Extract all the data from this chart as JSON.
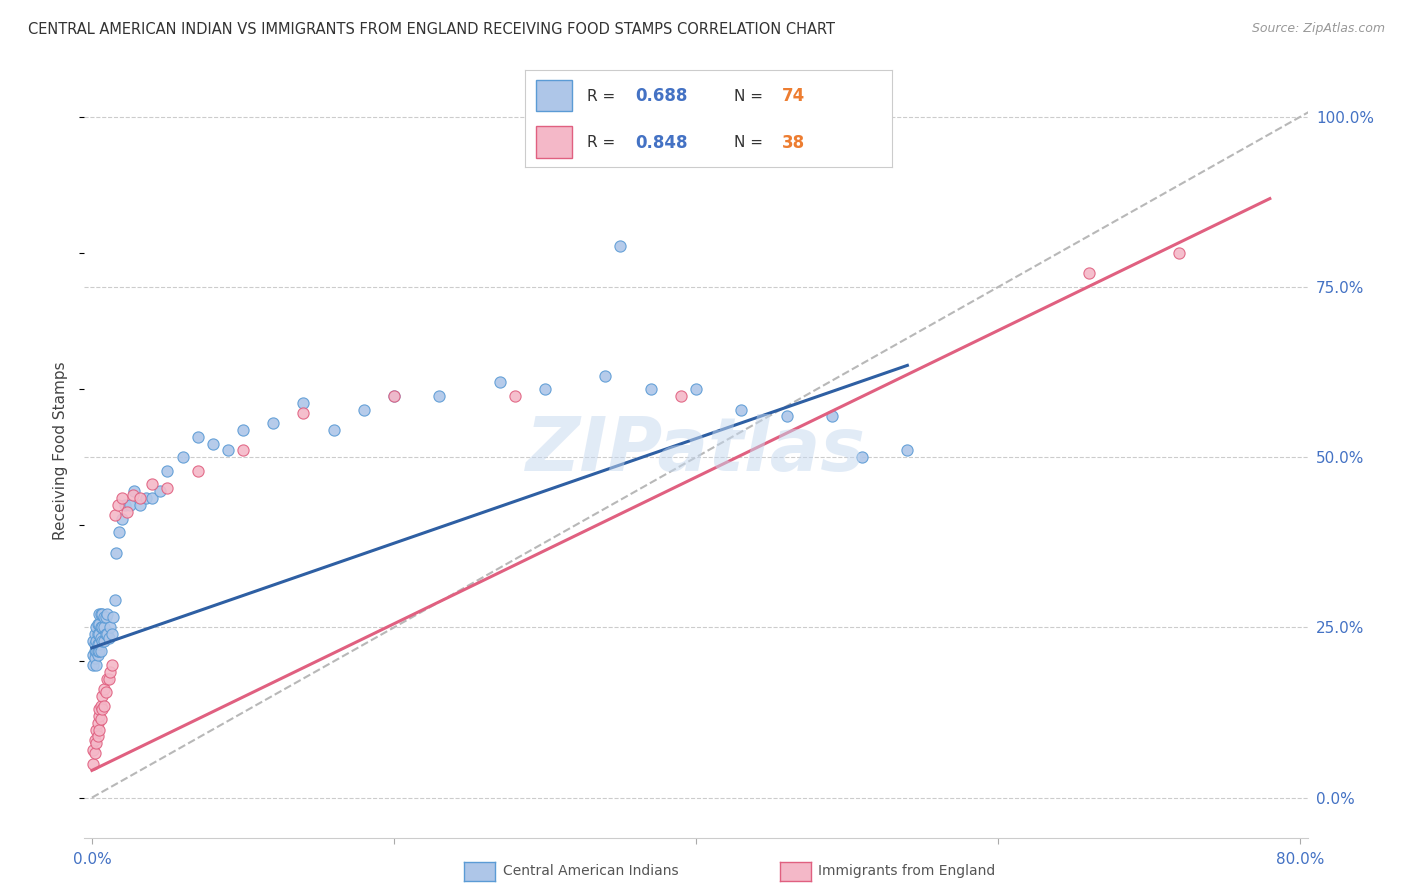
{
  "title": "CENTRAL AMERICAN INDIAN VS IMMIGRANTS FROM ENGLAND RECEIVING FOOD STAMPS CORRELATION CHART",
  "source": "Source: ZipAtlas.com",
  "ylabel": "Receiving Food Stamps",
  "watermark": "ZIPatlas",
  "x_min": -0.005,
  "x_max": 0.805,
  "y_min": -0.06,
  "y_max": 1.08,
  "series1_color": "#aec6e8",
  "series1_edge_color": "#5b9bd5",
  "series1_line_color": "#2e5fa3",
  "series1_label": "Central American Indians",
  "series1_R": "0.688",
  "series1_N": "74",
  "series2_color": "#f4b8c8",
  "series2_edge_color": "#e06080",
  "series2_line_color": "#e06080",
  "series2_label": "Immigrants from England",
  "series2_R": "0.848",
  "series2_N": "38",
  "legend_R_color": "#4472c4",
  "legend_N_color": "#ed7d31",
  "background_color": "#ffffff",
  "grid_color": "#cccccc",
  "blue_line_x": [
    0.0,
    0.54
  ],
  "blue_line_y": [
    0.22,
    0.635
  ],
  "pink_line_x": [
    0.0,
    0.78
  ],
  "pink_line_y": [
    0.04,
    0.88
  ],
  "diag_line_x": [
    0.0,
    0.82
  ],
  "diag_line_y": [
    0.0,
    1.025
  ],
  "s1_x": [
    0.001,
    0.001,
    0.001,
    0.002,
    0.002,
    0.002,
    0.002,
    0.003,
    0.003,
    0.003,
    0.003,
    0.003,
    0.004,
    0.004,
    0.004,
    0.004,
    0.004,
    0.005,
    0.005,
    0.005,
    0.005,
    0.005,
    0.006,
    0.006,
    0.006,
    0.006,
    0.007,
    0.007,
    0.007,
    0.008,
    0.008,
    0.008,
    0.009,
    0.009,
    0.01,
    0.01,
    0.011,
    0.012,
    0.013,
    0.014,
    0.015,
    0.016,
    0.018,
    0.02,
    0.022,
    0.025,
    0.028,
    0.032,
    0.036,
    0.04,
    0.045,
    0.05,
    0.06,
    0.07,
    0.08,
    0.09,
    0.1,
    0.12,
    0.14,
    0.16,
    0.18,
    0.2,
    0.23,
    0.27,
    0.3,
    0.34,
    0.37,
    0.4,
    0.43,
    0.46,
    0.49,
    0.51,
    0.54,
    0.35
  ],
  "s1_y": [
    0.23,
    0.21,
    0.195,
    0.215,
    0.205,
    0.225,
    0.24,
    0.195,
    0.215,
    0.23,
    0.215,
    0.25,
    0.21,
    0.225,
    0.24,
    0.215,
    0.255,
    0.215,
    0.225,
    0.24,
    0.255,
    0.27,
    0.215,
    0.235,
    0.25,
    0.27,
    0.23,
    0.25,
    0.27,
    0.23,
    0.25,
    0.265,
    0.24,
    0.265,
    0.24,
    0.27,
    0.235,
    0.25,
    0.24,
    0.265,
    0.29,
    0.36,
    0.39,
    0.41,
    0.43,
    0.43,
    0.45,
    0.43,
    0.44,
    0.44,
    0.45,
    0.48,
    0.5,
    0.53,
    0.52,
    0.51,
    0.54,
    0.55,
    0.58,
    0.54,
    0.57,
    0.59,
    0.59,
    0.61,
    0.6,
    0.62,
    0.6,
    0.6,
    0.57,
    0.56,
    0.56,
    0.5,
    0.51,
    0.81
  ],
  "s2_x": [
    0.001,
    0.001,
    0.002,
    0.002,
    0.003,
    0.003,
    0.004,
    0.004,
    0.005,
    0.005,
    0.005,
    0.006,
    0.006,
    0.007,
    0.007,
    0.008,
    0.008,
    0.009,
    0.01,
    0.011,
    0.012,
    0.013,
    0.015,
    0.017,
    0.02,
    0.023,
    0.027,
    0.032,
    0.04,
    0.05,
    0.07,
    0.1,
    0.14,
    0.2,
    0.28,
    0.39,
    0.66,
    0.72
  ],
  "s2_y": [
    0.05,
    0.07,
    0.065,
    0.085,
    0.08,
    0.1,
    0.09,
    0.11,
    0.1,
    0.12,
    0.13,
    0.115,
    0.135,
    0.13,
    0.15,
    0.135,
    0.16,
    0.155,
    0.175,
    0.175,
    0.185,
    0.195,
    0.415,
    0.43,
    0.44,
    0.42,
    0.445,
    0.44,
    0.46,
    0.455,
    0.48,
    0.51,
    0.565,
    0.59,
    0.59,
    0.59,
    0.77,
    0.8
  ]
}
